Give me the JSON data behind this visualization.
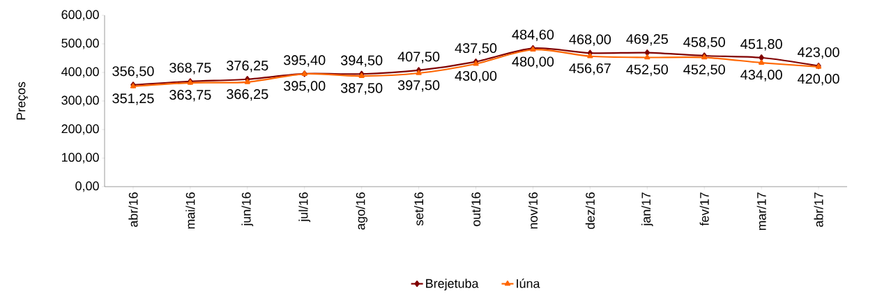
{
  "chart_data": {
    "type": "line",
    "ylabel": "Preços",
    "categories": [
      "abr/16",
      "mai/16",
      "jun/16",
      "jul/16",
      "ago/16",
      "set/16",
      "out/16",
      "nov/16",
      "dez/16",
      "jan/17",
      "fev/17",
      "mar/17",
      "abr/17"
    ],
    "series": [
      {
        "name": "Brejetuba",
        "color": "#800000",
        "marker": "diamond",
        "values": [
          356.5,
          368.75,
          376.25,
          395.4,
          394.5,
          407.5,
          437.5,
          484.6,
          468.0,
          469.25,
          458.5,
          451.8,
          423.0
        ],
        "value_labels": [
          "356,50",
          "368,75",
          "376,25",
          "395,40",
          "394,50",
          "407,50",
          "437,50",
          "484,60",
          "468,00",
          "469,25",
          "458,50",
          "451,80",
          "423,00"
        ]
      },
      {
        "name": "Iúna",
        "color": "#ff6600",
        "marker": "triangle",
        "values": [
          351.25,
          363.75,
          366.25,
          395.0,
          387.5,
          397.5,
          430.0,
          480.0,
          456.67,
          452.5,
          452.5,
          434.0,
          420.0
        ],
        "value_labels": [
          "351,25",
          "363,75",
          "366,25",
          "395,00",
          "387,50",
          "397,50",
          "430,00",
          "480,00",
          "456,67",
          "452,50",
          "452,50",
          "434,00",
          "420,00"
        ]
      }
    ],
    "ylim": [
      0,
      600
    ],
    "yticks": [
      {
        "value": 0,
        "label": "0,00"
      },
      {
        "value": 100,
        "label": "100,00"
      },
      {
        "value": 200,
        "label": "200,00"
      },
      {
        "value": 300,
        "label": "300,00"
      },
      {
        "value": 400,
        "label": "400,00"
      },
      {
        "value": 500,
        "label": "500,00"
      },
      {
        "value": 600,
        "label": "600,00"
      }
    ],
    "grid": false,
    "legend": "bottom",
    "line_style": "solid"
  }
}
